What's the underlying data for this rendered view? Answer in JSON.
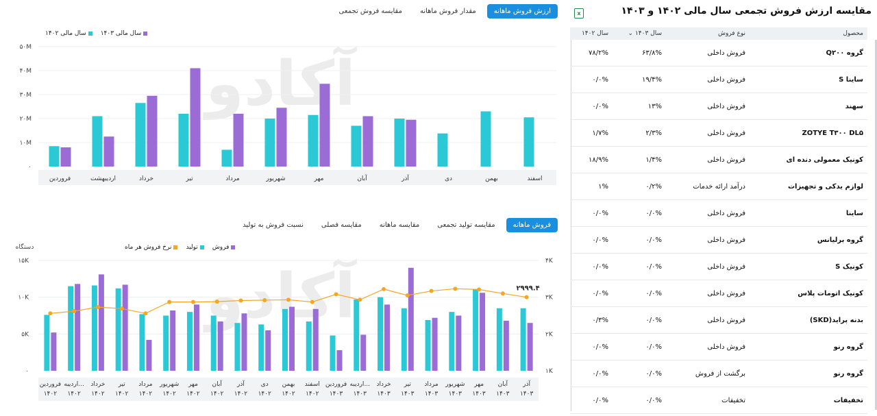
{
  "top_tabs": [
    "ارزش فروش ماهانه",
    "مقدار فروش ماهانه",
    "مقایسه فروش تجمعی"
  ],
  "top_tabs_active": 0,
  "bottom_tabs": [
    "فروش ماهانه",
    "مقایسه تولید تجمعی",
    "مقایسه ماهانه",
    "مقایسه فصلی",
    "نسبت فروش به تولید"
  ],
  "bottom_tabs_active": 0,
  "colors": {
    "teal": "#2bc9d6",
    "purple": "#9c6cd6",
    "orange": "#f5a623",
    "accent": "#1a8fe0"
  },
  "watermark": "آکادو",
  "chart_data": [
    {
      "type": "bar",
      "categories": [
        "فروردین",
        "اردیبهشت",
        "خرداد",
        "تیر",
        "مرداد",
        "شهریور",
        "مهر",
        "آبان",
        "آذر",
        "دی",
        "بهمن",
        "اسفند"
      ],
      "series": [
        {
          "name": "سال مالی ۱۴۰۲",
          "values": [
            8.5,
            21,
            26.5,
            22,
            7,
            20,
            21.5,
            17,
            20,
            13.8,
            23,
            20.5
          ]
        },
        {
          "name": "سال مالی ۱۴۰۳",
          "values": [
            8,
            12.5,
            29.5,
            41,
            22,
            24.5,
            34.5,
            21,
            19.5,
            null,
            null,
            null
          ]
        }
      ],
      "yticks": [
        "۰",
        "۱۰M",
        "۲۰M",
        "۳۰M",
        "۴۰M",
        "۵۰M"
      ],
      "ylim": [
        0,
        50
      ]
    },
    {
      "type": "bar",
      "categories": [
        "فروردین ۱۴۰۲",
        "اردیبه... ۱۴۰۲",
        "خرداد ۱۴۰۲",
        "تیر ۱۴۰۲",
        "مرداد ۱۴۰۲",
        "شهریور ۱۴۰۲",
        "مهر ۱۴۰۲",
        "آبان ۱۴۰۲",
        "آذر ۱۴۰۲",
        "دی ۱۴۰۲",
        "بهمن ۱۴۰۲",
        "اسفند ۱۴۰۲",
        "فروردین ۱۴۰۳",
        "اردیبه... ۱۴۰۳",
        "خرداد ۱۴۰۳",
        "تیر ۱۴۰۳",
        "مرداد ۱۴۰۳",
        "شهریور ۱۴۰۳",
        "مهر ۱۴۰۳",
        "آبان ۱۴۰۳",
        "آذر ۱۴۰۳"
      ],
      "series": [
        {
          "name": "تولید",
          "values": [
            7.6,
            11.5,
            11.6,
            11.2,
            7.7,
            7.5,
            8,
            7.5,
            6.5,
            6.3,
            8.4,
            6.7,
            4.8,
            9.7,
            10,
            8.5,
            6.9,
            8,
            11.1,
            8.5,
            8.5
          ]
        },
        {
          "name": "فروش",
          "values": [
            5.2,
            11.8,
            13.1,
            11.7,
            4.2,
            8.2,
            9,
            6.7,
            7.8,
            5.5,
            8.7,
            8.4,
            2.8,
            4.9,
            9,
            14,
            7.2,
            7.5,
            10.6,
            6.8,
            6.5
          ]
        },
        {
          "name": "نرخ فروش هر ماه",
          "values": [
            2560,
            2620,
            2730,
            2690,
            2560,
            2870,
            2870,
            2880,
            2910,
            2920,
            2930,
            2870,
            3080,
            2930,
            3220,
            3050,
            3170,
            3230,
            3210,
            3100,
            3000
          ]
        }
      ],
      "yticks_left": [
        "۰",
        "۵K",
        "۱۰K",
        "۱۵K"
      ],
      "yticks_right": [
        "۱K",
        "۲K",
        "۳K",
        "۴K"
      ],
      "ylim_left": [
        0,
        15
      ],
      "ylim_right": [
        1000,
        4000
      ],
      "left_axis_label": "دستگاه",
      "last_point_label": "۲۹۹۹.۴"
    }
  ],
  "right_panel": {
    "title": "مقایسه ارزش فروش تجمعی سال مالی ۱۴۰۲ و ۱۴۰۳",
    "excel_icon": "excel-icon",
    "columns": [
      "محصول",
      "نوع فروش",
      "سال ۱۴۰۳",
      "سال ۱۴۰۲"
    ],
    "rows": [
      [
        "گروه Q۲۰۰",
        "فروش داخلی",
        "۶۳/۸%",
        "۷۸/۲%"
      ],
      [
        "ساینا S",
        "فروش داخلی",
        "۱۹/۴%",
        "۰/۰%"
      ],
      [
        "سهند",
        "فروش داخلی",
        "۱۳%",
        "۰/۰%"
      ],
      [
        "ZOTYE T۳۰۰ DL۵",
        "فروش داخلی",
        "۲/۳%",
        "۱/۷%"
      ],
      [
        "کونیک معمولی دنده ای",
        "فروش داخلی",
        "۱/۴%",
        "۱۸/۹%"
      ],
      [
        "لوازم یدکی و تجهیزات",
        "درآمد ارائه خدمات",
        "۰/۲%",
        "۱%"
      ],
      [
        "ساینا",
        "فروش داخلی",
        "۰/۰%",
        "۰/۰%"
      ],
      [
        "گروه برلیانس",
        "فروش داخلی",
        "۰/۰%",
        "۰/۰%"
      ],
      [
        "کونیک S",
        "فروش داخلی",
        "۰/۰%",
        "۰/۰%"
      ],
      [
        "کونیک اتومات پلاس",
        "فروش داخلی",
        "۰/۰%",
        "۰/۰%"
      ],
      [
        "بدنه پراید(SKD)",
        "فروش داخلی",
        "۰/۰%",
        "۰/۳%"
      ],
      [
        "گروه رنو",
        "فروش داخلی",
        "۰/۰%",
        "۰/۰%"
      ],
      [
        "گروه رنو",
        "برگشت از فروش",
        "۰/۰%",
        "۰/۰%"
      ],
      [
        "تخفیفات",
        "تخفیفات",
        "۰/۰%",
        "۰/۰%"
      ]
    ]
  }
}
